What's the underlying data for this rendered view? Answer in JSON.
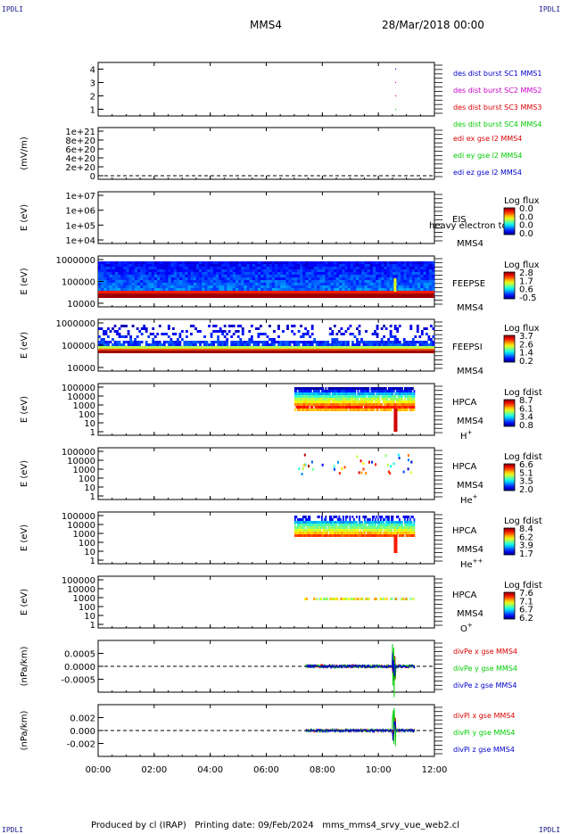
{
  "header": {
    "spacecraft": "MMS4",
    "date": "28/Mar/2018 00:00",
    "corner_label": "IPDLI"
  },
  "footer": {
    "text": "Produced by cl (IRAP)   Printing date: 09/Feb/2024   mms_mms4_srvy_vue_web2.cl"
  },
  "chart_data": [
    {
      "type": "scatter",
      "panel": "des-dist-burst",
      "yticks": [
        "1",
        "2",
        "3",
        "4"
      ],
      "ylim": [
        0.5,
        4.5
      ],
      "series": [
        {
          "name": "des dist burst SC1 MMS1",
          "color": "#0000cc",
          "y": 4,
          "x": [
            "10:36",
            "10:38"
          ]
        },
        {
          "name": "des dist burst SC2 MMS2",
          "color": "#cc00cc",
          "y": 3,
          "x": [
            "10:36",
            "10:38"
          ]
        },
        {
          "name": "des dist burst SC3 MMS3",
          "color": "#dd0000",
          "y": 2,
          "x": [
            "10:36",
            "10:38"
          ]
        },
        {
          "name": "des dist burst SC4 MMS4",
          "color": "#00cc00",
          "y": 1,
          "x": [
            "10:36",
            "10:38"
          ]
        }
      ]
    },
    {
      "type": "line",
      "panel": "edi",
      "ylabel": "(mV/m)",
      "yticks": [
        "1e+21",
        "8e+20",
        "6e+20",
        "4e+20",
        "2e+20",
        "0"
      ],
      "series": [
        {
          "name": "edi ex gse l2 MMS4",
          "color": "#dd0000"
        },
        {
          "name": "edi ey gse l2 MMS4",
          "color": "#00cc00"
        },
        {
          "name": "edi ez gse l2 MMS4",
          "color": "#0000cc"
        }
      ]
    },
    {
      "type": "heatmap",
      "panel": "eis",
      "ylabel": "E (eV)",
      "yticks": [
        "1e+07",
        "1e+06",
        "1e+05",
        "1e+04"
      ],
      "side_label": "EIS",
      "side_sub": "MMS4",
      "overlay_text": "heavy electron to",
      "colorbar": {
        "title": "Log flux",
        "ticks": [
          "0.0",
          "0.0",
          "0.0",
          "0.0"
        ]
      }
    },
    {
      "type": "heatmap",
      "panel": "feepse",
      "ylabel": "E (eV)",
      "yticks": [
        "1000000",
        "100000",
        "10000"
      ],
      "side_label": "FEEPSE",
      "side_sub": "MMS4",
      "colorbar": {
        "title": "Log flux",
        "ticks": [
          "2.8",
          "1.7",
          "0.6",
          "-0.5"
        ]
      }
    },
    {
      "type": "heatmap",
      "panel": "feepsi",
      "ylabel": "E (eV)",
      "yticks": [
        "1000000",
        "100000",
        "10000"
      ],
      "side_label": "FEEPSI",
      "side_sub": "MMS4",
      "colorbar": {
        "title": "Log flux",
        "ticks": [
          "3.7",
          "2.6",
          "1.4",
          "0.2"
        ]
      }
    },
    {
      "type": "heatmap",
      "panel": "hpca-h",
      "ylabel": "E (eV)",
      "yticks": [
        "100000",
        "10000",
        "1000",
        "100",
        "10",
        "1"
      ],
      "side_label": "HPCA",
      "side_sub": "MMS4",
      "species": "H",
      "charge": "+",
      "colorbar": {
        "title": "Log fdist",
        "ticks": [
          "8.7",
          "6.1",
          "3.4",
          "0.8"
        ]
      }
    },
    {
      "type": "heatmap",
      "panel": "hpca-he",
      "ylabel": "E (eV)",
      "yticks": [
        "100000",
        "10000",
        "1000",
        "100",
        "10",
        "1"
      ],
      "side_label": "HPCA",
      "side_sub": "MMS4",
      "species": "He",
      "charge": "+",
      "colorbar": {
        "title": "Log fdist",
        "ticks": [
          "6.6",
          "5.1",
          "3.5",
          "2.0"
        ]
      }
    },
    {
      "type": "heatmap",
      "panel": "hpca-hepp",
      "ylabel": "E (eV)",
      "yticks": [
        "100000",
        "10000",
        "1000",
        "100",
        "10",
        "1"
      ],
      "side_label": "HPCA",
      "side_sub": "MMS4",
      "species": "He",
      "charge": "++",
      "colorbar": {
        "title": "Log fdist",
        "ticks": [
          "8.4",
          "6.2",
          "3.9",
          "1.7"
        ]
      }
    },
    {
      "type": "heatmap",
      "panel": "hpca-o",
      "ylabel": "E (eV)",
      "yticks": [
        "100000",
        "10000",
        "1000",
        "100",
        "10",
        "1"
      ],
      "side_label": "HPCA",
      "side_sub": "MMS4",
      "species": "O",
      "charge": "+",
      "colorbar": {
        "title": "Log fdist",
        "ticks": [
          "7.6",
          "7.1",
          "6.7",
          "6.2"
        ]
      }
    },
    {
      "type": "line",
      "panel": "divpe",
      "ylabel": "(nPa/km)",
      "yticks": [
        "0.0005",
        "0.0000",
        "-0.0005"
      ],
      "ylim": [
        -0.001,
        0.001
      ],
      "series": [
        {
          "name": "divPe x gse MMS4",
          "color": "#dd0000"
        },
        {
          "name": "divPe y gse MMS4",
          "color": "#00cc00"
        },
        {
          "name": "divPe z gse MMS4",
          "color": "#0000cc"
        }
      ]
    },
    {
      "type": "line",
      "panel": "divpi",
      "ylabel": "(nPa/km)",
      "yticks": [
        "0.002",
        "0.000",
        "-0.002"
      ],
      "ylim": [
        -0.004,
        0.004
      ],
      "series": [
        {
          "name": "divPi x gse MMS4",
          "color": "#dd0000"
        },
        {
          "name": "divPi y gse MMS4",
          "color": "#00cc00"
        },
        {
          "name": "divPi z gse MMS4",
          "color": "#0000cc"
        }
      ]
    }
  ],
  "x_axis": {
    "ticks": [
      "00:00",
      "02:00",
      "04:00",
      "06:00",
      "08:00",
      "10:00",
      "12:00"
    ],
    "xlim_hours": [
      0,
      12
    ]
  }
}
